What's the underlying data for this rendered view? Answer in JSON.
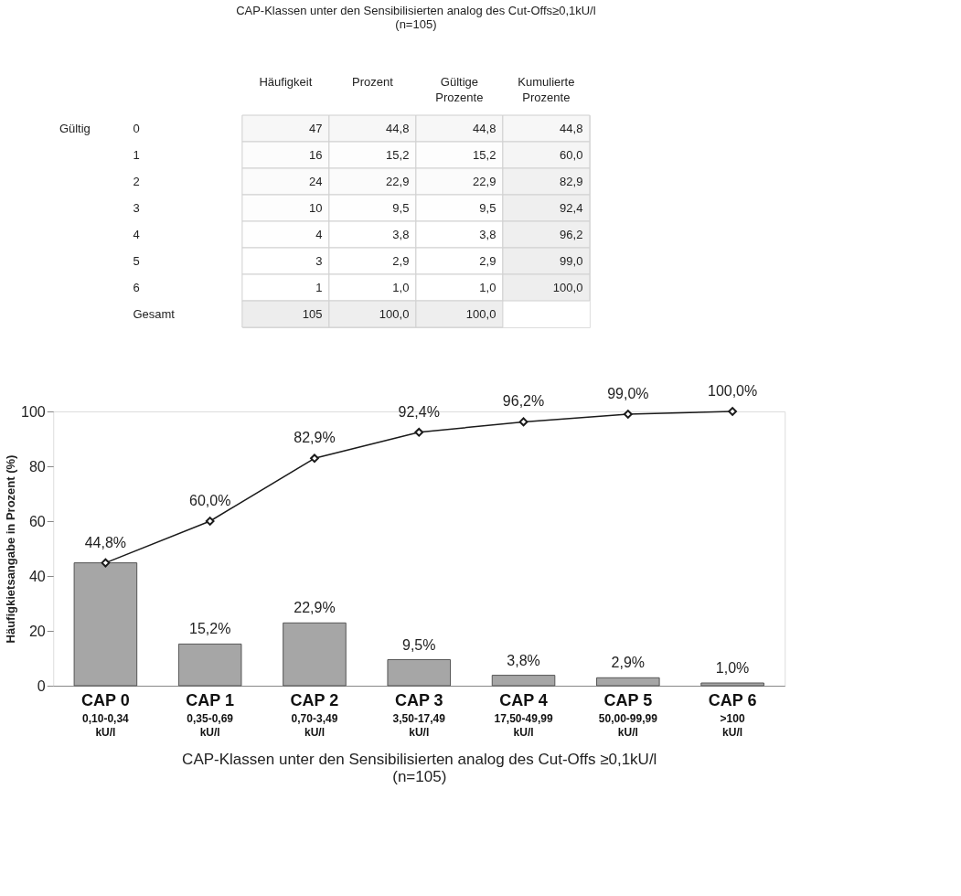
{
  "chart_data": [
    {
      "type": "heatmap",
      "title": "CAP-Klassen unter den Sensibilisierten analog des Cut-Offs≥0,1kU/l\n(n=105)",
      "annotations": [
        "Gültig"
      ],
      "categories": [
        "Häufigkeit",
        "Prozent",
        "Gültige\nProzente",
        "Kumulierte\nProzente"
      ],
      "y_categories": [
        "0",
        "1",
        "2",
        "3",
        "4",
        "5",
        "6",
        "Gesamt"
      ],
      "cells": [
        [
          47,
          44.8,
          44.8,
          44.8
        ],
        [
          16,
          15.2,
          15.2,
          60.0
        ],
        [
          24,
          22.9,
          22.9,
          82.9
        ],
        [
          10,
          9.5,
          9.5,
          92.4
        ],
        [
          4,
          3.8,
          3.8,
          96.2
        ],
        [
          3,
          2.9,
          2.9,
          99.0
        ],
        [
          1,
          1.0,
          1.0,
          100.0
        ],
        [
          105,
          100.0,
          100.0,
          null
        ]
      ],
      "cell_labels": [
        [
          "47",
          "44,8",
          "44,8",
          "44,8"
        ],
        [
          "16",
          "15,2",
          "15,2",
          "60,0"
        ],
        [
          "24",
          "22,9",
          "22,9",
          "82,9"
        ],
        [
          "10",
          "9,5",
          "9,5",
          "92,4"
        ],
        [
          "4",
          "3,8",
          "3,8",
          "96,2"
        ],
        [
          "3",
          "2,9",
          "2,9",
          "99,0"
        ],
        [
          "1",
          "1,0",
          "1,0",
          "100,0"
        ],
        [
          "105",
          "100,0",
          "100,0",
          null
        ]
      ]
    },
    {
      "type": "bar",
      "categories": [
        "CAP 0\n0,10-0,34\nkU/l",
        "CAP 1\n0,35-0,69\nkU/l",
        "CAP 2\n0,70-3,49\nkU/l",
        "CAP 3\n3,50-17,49\nkU/l",
        "CAP 4\n17,50-49,99\nkU/l",
        "CAP 5\n50,00-99,99\nkU/l",
        "CAP 6\n>100\nkU/l"
      ],
      "xlabel": "CAP-Klassen unter den Sensibilisierten analog des Cut-Offs ≥0,1kU/l\n(n=105)",
      "ylabel": "Häufigkietsangabe in Prozent (%)",
      "ylim": [
        0,
        100
      ],
      "yticks": [
        0,
        20,
        40,
        60,
        80,
        100
      ],
      "series": [
        {
          "type": "bar",
          "color": "#a6a6a6",
          "values": [
            44.8,
            15.2,
            22.9,
            9.5,
            3.8,
            2.9,
            1.0
          ],
          "value_labels": [
            null,
            "15,2%",
            "22,9%",
            "9,5%",
            "3,8%",
            "2,9%",
            "1,0%"
          ]
        },
        {
          "type": "line",
          "color": "#1a1a1a",
          "marker": "diamond",
          "line_style": "solid",
          "values": [
            44.8,
            60.0,
            82.9,
            92.4,
            96.2,
            99.0,
            100.0
          ],
          "value_labels": [
            "44,8%",
            "60,0%",
            "82,9%",
            "92,4%",
            "96,2%",
            "99,0%",
            "100,0%"
          ]
        }
      ]
    }
  ]
}
